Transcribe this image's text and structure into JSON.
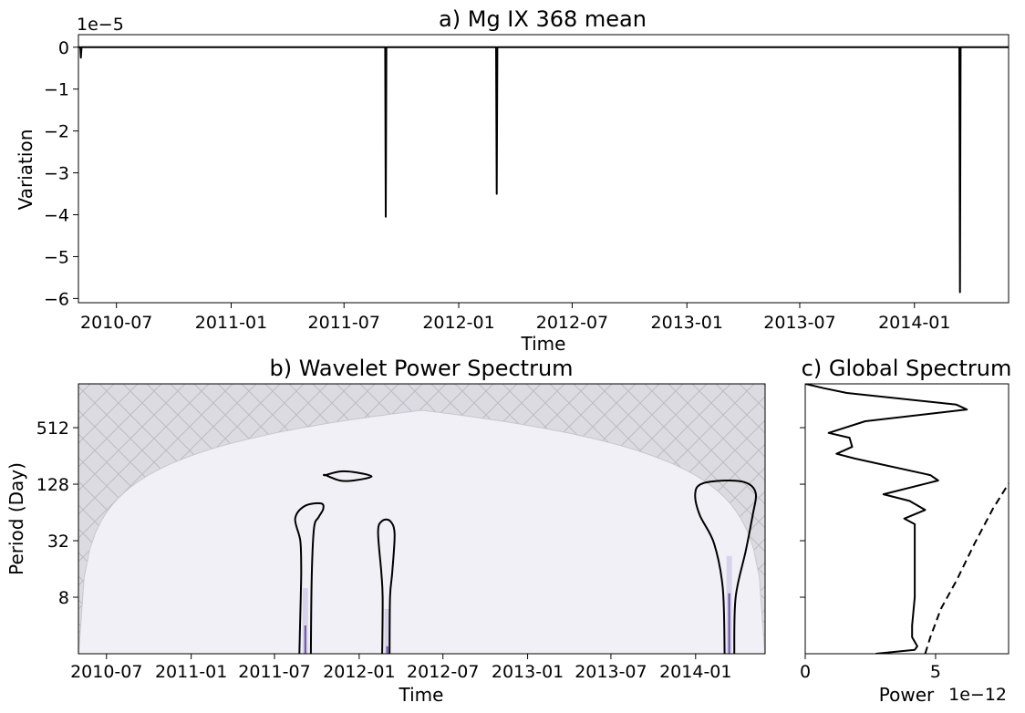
{
  "chart_data": [
    {
      "type": "line",
      "title": "a) Mg IX 368 mean",
      "xlabel": "Time",
      "ylabel": "Variation",
      "y_offset_label": "1e−5",
      "x_ticks": [
        "2010-07",
        "2011-01",
        "2011-07",
        "2012-01",
        "2012-07",
        "2013-01",
        "2013-07",
        "2014-01"
      ],
      "y_ticks": [
        "0",
        "−1",
        "−2",
        "−3",
        "−4",
        "−5",
        "−6"
      ],
      "ylim": [
        -6.1,
        0.3
      ],
      "xlim": [
        "2010-05-01",
        "2014-06-01"
      ],
      "series": [
        {
          "x": [
            "2010-05-01",
            "2010-05-04",
            "2010-05-05",
            "2010-05-06",
            "2011-09-05",
            "2011-09-06",
            "2011-09-07",
            "2012-03-01",
            "2012-03-02",
            "2012-03-03",
            "2014-03-14",
            "2014-03-15",
            "2014-03-16",
            "2014-06-01"
          ],
          "values": [
            0,
            0,
            -0.25,
            0,
            0,
            -4.05,
            0,
            0,
            -3.5,
            0,
            0,
            -5.85,
            0,
            0
          ]
        }
      ],
      "color": "#000000",
      "grid": false
    },
    {
      "type": "heatmap",
      "title": "b) Wavelet Power Spectrum",
      "xlabel": "Time",
      "ylabel": "Period (Day)",
      "x_ticks": [
        "2010-07",
        "2011-01",
        "2011-07",
        "2012-01",
        "2012-07",
        "2013-01",
        "2013-07",
        "2014-01"
      ],
      "y_ticks": [
        "8",
        "32",
        "128",
        "512"
      ],
      "y_log2": true,
      "ylim": [
        2,
        1500
      ],
      "xlim": [
        "2010-05-01",
        "2014-06-01"
      ],
      "background_color": "#f2f0f7",
      "coi_color": "#dcdbe2",
      "coi_hatch": "x",
      "highlights": [
        {
          "x": "2011-09-06",
          "period_top": 10
        },
        {
          "x": "2012-03-02",
          "period_top": 6
        },
        {
          "x": "2014-03-15",
          "period_top": 22
        }
      ],
      "contours": [
        {
          "x": [
            "2011-10-20",
            "2011-11-20",
            "2011-12-20",
            "2012-01-28",
            "2011-12-20",
            "2011-11-20",
            "2011-10-20"
          ],
          "period": [
            160,
            140,
            140,
            155,
            172,
            175,
            160
          ],
          "closed": true
        },
        {
          "x": [
            "2011-08-24",
            "2011-08-27",
            "2011-08-28",
            "2011-08-26",
            "2011-08-15",
            "2011-09-05",
            "2011-10-10",
            "2011-10-15",
            "2011-10-05",
            "2011-09-25",
            "2011-09-20",
            "2011-09-18"
          ],
          "period": [
            2,
            8,
            16,
            32,
            55,
            75,
            80,
            70,
            57,
            44,
            14,
            2
          ],
          "closed": false
        },
        {
          "x": [
            "2012-02-20",
            "2012-02-21",
            "2012-02-18",
            "2012-02-11",
            "2012-02-20",
            "2012-03-08",
            "2012-03-18",
            "2012-03-13",
            "2012-03-08",
            "2012-03-07"
          ],
          "period": [
            2,
            8,
            15,
            40,
            52,
            52,
            38,
            15,
            8,
            2
          ],
          "closed": false
        },
        {
          "x": [
            "2014-03-05",
            "2014-03-01",
            "2014-02-10",
            "2014-01-10",
            "2013-12-31",
            "2014-01-15",
            "2014-03-15",
            "2014-04-25",
            "2014-05-12",
            "2014-05-05",
            "2014-04-20",
            "2014-03-29",
            "2014-03-26"
          ],
          "period": [
            2,
            10,
            30,
            60,
            100,
            130,
            140,
            130,
            100,
            60,
            25,
            8,
            2
          ],
          "closed": false
        }
      ]
    },
    {
      "type": "line",
      "title": "c) Global Spectrum",
      "xlabel": "Power",
      "x_offset_label": "1e−12",
      "x_ticks": [
        "0",
        "5"
      ],
      "xlim": [
        0,
        7.8
      ],
      "y_log2": true,
      "ylim": [
        2,
        1500
      ],
      "series": [
        {
          "style": "solid",
          "power": [
            0,
            0.7,
            1.6,
            5.8,
            6.2,
            2.3,
            0.9,
            1.7,
            1.8,
            1.2,
            1.9,
            4.8,
            5.1,
            3.0,
            4.0,
            4.6,
            3.8,
            4.2,
            4.2,
            4.2,
            4.2,
            4.1,
            4.1,
            4.3,
            4.2,
            2.7
          ],
          "period": [
            1500,
            1350,
            1200,
            900,
            800,
            600,
            450,
            400,
            320,
            270,
            240,
            160,
            140,
            100,
            85,
            68,
            55,
            48,
            30,
            15,
            8,
            4,
            3,
            2.4,
            2.2,
            2.0
          ]
        },
        {
          "style": "dashed",
          "power": [
            4.6,
            4.8,
            5.2,
            5.8,
            6.5,
            7.2,
            7.8
          ],
          "period": [
            2,
            3,
            6,
            12,
            30,
            70,
            130
          ]
        }
      ]
    }
  ]
}
